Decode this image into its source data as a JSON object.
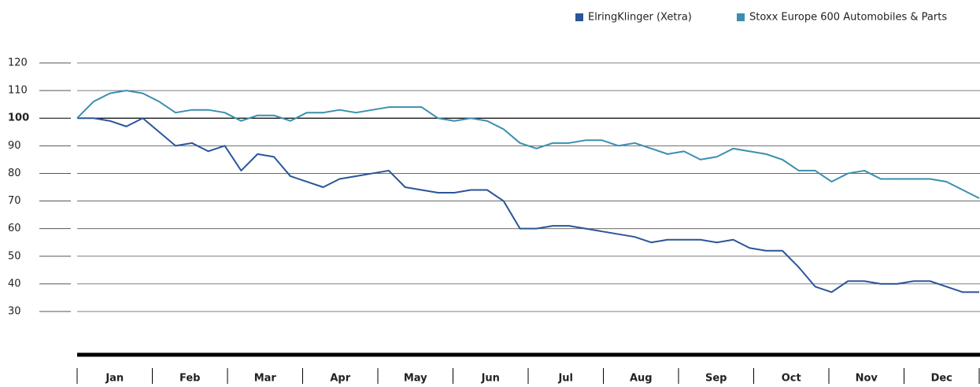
{
  "chart_data": {
    "type": "line",
    "months": [
      "Jan",
      "Feb",
      "Mar",
      "Apr",
      "May",
      "Jun",
      "Jul",
      "Aug",
      "Sep",
      "Oct",
      "Nov",
      "Dec"
    ],
    "series": [
      {
        "name": "ElringKlinger (Xetra)",
        "color": "#2a5599",
        "values": [
          100,
          100,
          99,
          97,
          100,
          95,
          90,
          91,
          88,
          90,
          81,
          87,
          86,
          79,
          77,
          75,
          78,
          79,
          80,
          81,
          75,
          74,
          73,
          73,
          74,
          74,
          70,
          60,
          60,
          61,
          61,
          60,
          59,
          58,
          57,
          55,
          56,
          56,
          56,
          55,
          56,
          53,
          52,
          52,
          46,
          39,
          37,
          41,
          41,
          40,
          40,
          41,
          41,
          39,
          37,
          37
        ]
      },
      {
        "name": "Stoxx Europe 600 Automobiles & Parts",
        "color": "#3a8fae",
        "values": [
          100,
          106,
          109,
          110,
          109,
          106,
          102,
          103,
          103,
          102,
          99,
          101,
          101,
          99,
          102,
          102,
          103,
          102,
          103,
          104,
          104,
          104,
          100,
          99,
          100,
          99,
          96,
          91,
          89,
          91,
          91,
          92,
          92,
          90,
          91,
          89,
          87,
          88,
          85,
          86,
          89,
          88,
          87,
          85,
          81,
          81,
          77,
          80,
          81,
          78,
          78,
          78,
          78,
          77,
          74,
          71
        ]
      }
    ],
    "ylim": [
      30,
      120
    ],
    "yticks": [
      30,
      40,
      50,
      60,
      70,
      80,
      90,
      100,
      110,
      120
    ],
    "reference_line": 100,
    "grid": true,
    "legend": "top-right"
  }
}
